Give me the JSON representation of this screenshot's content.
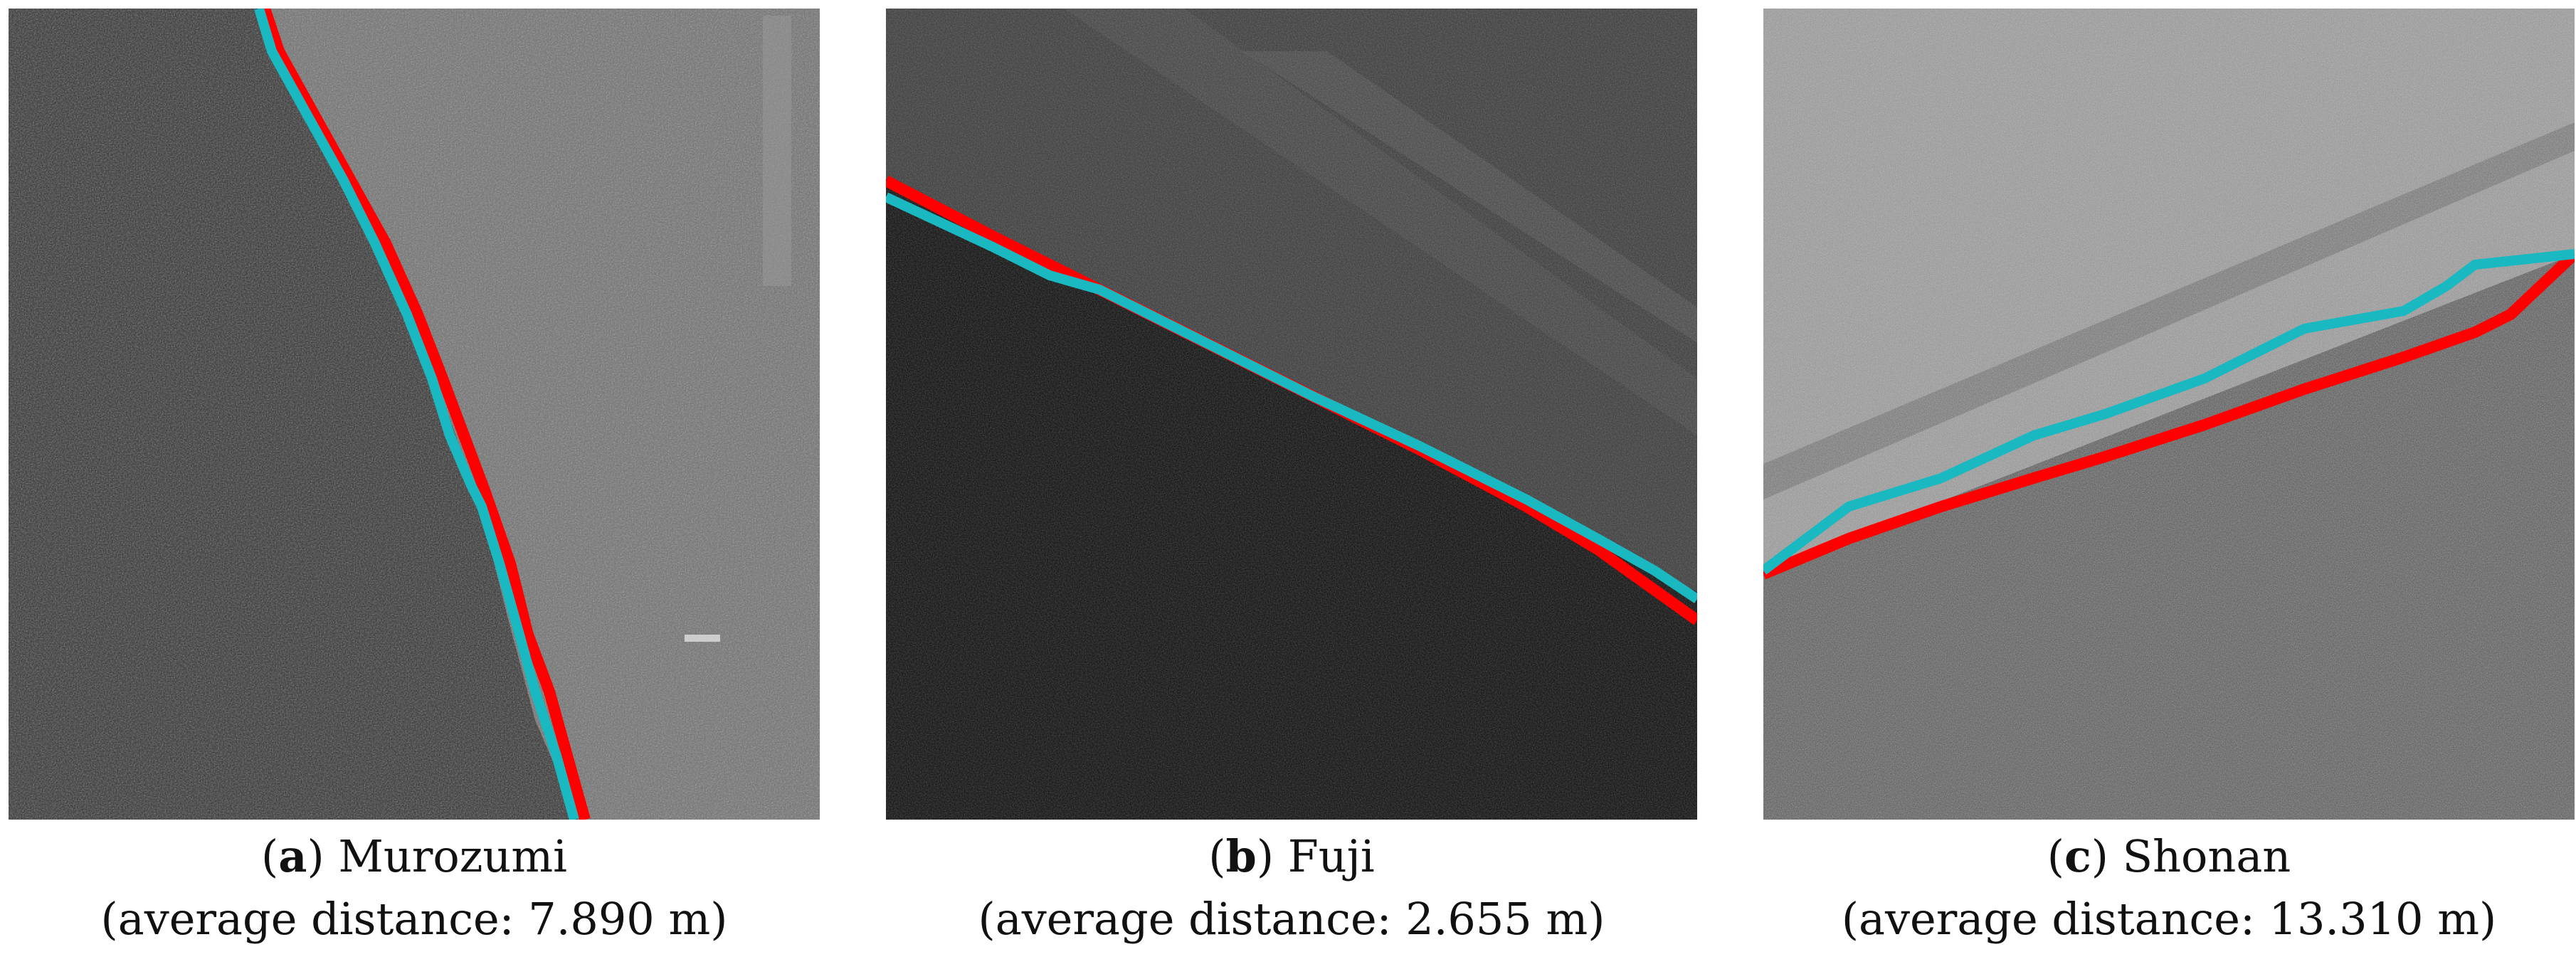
{
  "panels": [
    {
      "letter": "a",
      "name": "Murozumi",
      "distance_text": "(average distance: 7.890 m)",
      "line_colors": {
        "reference": "#ff0000",
        "detected": "#1ab8c0"
      }
    },
    {
      "letter": "b",
      "name": "Fuji",
      "distance_text": "(average distance: 2.655 m)",
      "line_colors": {
        "reference": "#ff0000",
        "detected": "#1ab8c0"
      }
    },
    {
      "letter": "c",
      "name": "Shonan",
      "distance_text": "(average distance: 13.310 m)",
      "line_colors": {
        "reference": "#ff0000",
        "detected": "#1ab8c0"
      }
    }
  ]
}
